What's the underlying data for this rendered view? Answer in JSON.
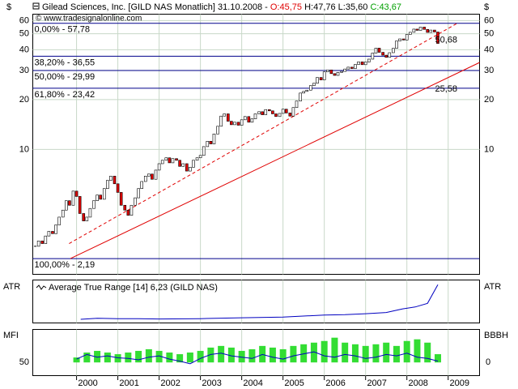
{
  "chart_data": [
    {
      "type": "candlestick",
      "title": "Gilead Sciences, Inc. [GILD NAS  Monatlich] 31.10.2008 -",
      "quote": [
        {
          "text": "O:45,75",
          "color": "#e00000"
        },
        {
          "text": "H:47,76",
          "color": "#000000"
        },
        {
          "text": "L:35,60",
          "color": "#000000"
        },
        {
          "text": "C:43,67",
          "color": "#00a000"
        }
      ],
      "source": "© www.tradesignalonline.com",
      "ylabel": "$",
      "log_scale": true,
      "ylim": [
        1.76,
        65.6
      ],
      "yticks": [
        10,
        20,
        30,
        40,
        50,
        60
      ],
      "xlim": [
        1998.94,
        2009.76
      ],
      "grid": true,
      "x": [
        1999.0,
        1999.08,
        1999.17,
        1999.25,
        1999.33,
        1999.42,
        1999.5,
        1999.58,
        1999.67,
        1999.75,
        1999.83,
        1999.92,
        2000.0,
        2000.08,
        2000.17,
        2000.25,
        2000.33,
        2000.42,
        2000.5,
        2000.58,
        2000.67,
        2000.75,
        2000.83,
        2000.92,
        2001.0,
        2001.08,
        2001.17,
        2001.25,
        2001.33,
        2001.42,
        2001.5,
        2001.58,
        2001.67,
        2001.75,
        2001.83,
        2001.92,
        2002.0,
        2002.08,
        2002.17,
        2002.25,
        2002.33,
        2002.42,
        2002.5,
        2002.58,
        2002.67,
        2002.75,
        2002.83,
        2002.92,
        2003.0,
        2003.08,
        2003.17,
        2003.25,
        2003.33,
        2003.42,
        2003.5,
        2003.58,
        2003.67,
        2003.75,
        2003.83,
        2003.92,
        2004.0,
        2004.08,
        2004.17,
        2004.25,
        2004.33,
        2004.42,
        2004.5,
        2004.58,
        2004.67,
        2004.75,
        2004.83,
        2004.92,
        2005.0,
        2005.08,
        2005.17,
        2005.25,
        2005.33,
        2005.42,
        2005.5,
        2005.58,
        2005.67,
        2005.75,
        2005.83,
        2005.92,
        2006.0,
        2006.08,
        2006.17,
        2006.25,
        2006.33,
        2006.42,
        2006.5,
        2006.58,
        2006.67,
        2006.75,
        2006.83,
        2006.92,
        2007.0,
        2007.08,
        2007.17,
        2007.25,
        2007.33,
        2007.42,
        2007.5,
        2007.58,
        2007.67,
        2007.75,
        2007.83,
        2007.92,
        2008.0,
        2008.08,
        2008.17,
        2008.25,
        2008.33,
        2008.42,
        2008.5,
        2008.58,
        2008.67,
        2008.75
      ],
      "values": [
        2.6,
        2.8,
        2.7,
        3.0,
        3.2,
        3.1,
        3.5,
        3.9,
        4.3,
        4.9,
        4.6,
        5.6,
        5.2,
        4.1,
        3.7,
        3.9,
        4.4,
        4.9,
        5.3,
        5.0,
        5.8,
        6.5,
        6.9,
        6.2,
        5.5,
        4.6,
        4.3,
        4.0,
        4.6,
        5.1,
        5.8,
        6.4,
        6.9,
        7.1,
        6.6,
        7.5,
        8.2,
        8.6,
        8.9,
        8.3,
        8.8,
        8.6,
        7.9,
        8.2,
        7.4,
        7.8,
        8.6,
        8.9,
        9.2,
        10.4,
        11.2,
        10.8,
        12.4,
        13.8,
        15.9,
        16.4,
        14.8,
        14.1,
        14.6,
        14.0,
        15.1,
        15.8,
        14.6,
        15.3,
        16.4,
        16.9,
        16.2,
        17.4,
        17.1,
        16.4,
        15.8,
        16.5,
        17.5,
        16.6,
        15.9,
        17.9,
        19.6,
        21.9,
        22.4,
        22.8,
        24.3,
        25.1,
        27.2,
        26.3,
        29.4,
        30.2,
        28.7,
        28.0,
        29.2,
        29.6,
        30.6,
        31.4,
        30.8,
        32.6,
        33.8,
        32.5,
        33.7,
        35.1,
        38.2,
        40.9,
        38.6,
        37.1,
        36.0,
        38.4,
        40.8,
        45.2,
        46.5,
        45.8,
        49.5,
        51.0,
        53.3,
        52.4,
        54.8,
        53.1,
        50.9,
        52.6,
        51.2,
        43.67
      ],
      "up_color": "#ffffff",
      "down_color": "#e00000",
      "edge_color": "#000000",
      "level_color": "#00008b",
      "levels": [
        {
          "value": 57.78,
          "label": "0,00% - 57,78"
        },
        {
          "value": 36.55,
          "label": "38,20% - 36,55"
        },
        {
          "value": 29.99,
          "label": "50,00% - 29,99"
        },
        {
          "value": 23.42,
          "label": "61,80% - 23,42"
        },
        {
          "value": 2.19,
          "label": "100,00% - 2,19"
        }
      ],
      "trend_lines": [
        {
          "x": [
            1999.82,
            2009.2
          ],
          "y": [
            2.7,
            57.4
          ],
          "dashed": true,
          "color": "#e00000",
          "end_label": {
            "value": 50.68,
            "label": "50,68"
          }
        },
        {
          "x": [
            1999.85,
            2009.76
          ],
          "y": [
            2.19,
            33.5
          ],
          "dashed": false,
          "color": "#e00000",
          "end_label": {
            "value": 25.58,
            "label": "25,58"
          }
        }
      ]
    },
    {
      "type": "line",
      "title": "Average True Range [14] 6,23 (GILD NAS)",
      "ylabel": "ATR",
      "xlim": [
        1998.94,
        2009.76
      ],
      "ylim": [
        0,
        7
      ],
      "x": [
        2000.1,
        2000.5,
        2001,
        2001.5,
        2002,
        2003,
        2004,
        2005,
        2006,
        2006.5,
        2007,
        2007.5,
        2007.9,
        2008.2,
        2008.5,
        2008.75
      ],
      "values": [
        0.6,
        0.75,
        0.7,
        0.7,
        0.65,
        0.7,
        0.85,
        0.95,
        1.3,
        1.35,
        1.5,
        1.7,
        2.3,
        2.6,
        3.2,
        6.23
      ],
      "color": "#0000c0"
    },
    {
      "type": "combo",
      "ylabel": "MFI",
      "y2label": "BBBH",
      "xlim": [
        1998.94,
        2009.76
      ],
      "xticks": [
        2000,
        2001,
        2002,
        2003,
        2004,
        2005,
        2006,
        2007,
        2008,
        2009
      ],
      "ylim": [
        30,
        100
      ],
      "yticks": [
        50
      ],
      "y2lim": [
        -0.4,
        1
      ],
      "y2ticks": [
        0
      ],
      "x": [
        2000,
        2000.25,
        2000.5,
        2000.75,
        2001,
        2001.25,
        2001.5,
        2001.75,
        2002,
        2002.25,
        2002.5,
        2002.75,
        2003,
        2003.25,
        2003.5,
        2003.75,
        2004,
        2004.25,
        2004.5,
        2004.75,
        2005,
        2005.25,
        2005.5,
        2005.75,
        2006,
        2006.25,
        2006.5,
        2006.75,
        2007,
        2007.25,
        2007.5,
        2007.75,
        2008,
        2008.25,
        2008.5,
        2008.75
      ],
      "series": [
        {
          "name": "BBBH",
          "type": "bar",
          "axis": "y2",
          "color": "#33dd33",
          "values": [
            0.15,
            0.3,
            0.35,
            0.3,
            0.25,
            0.3,
            0.35,
            0.4,
            0.35,
            0.3,
            0.25,
            0.3,
            0.35,
            0.45,
            0.5,
            0.45,
            0.35,
            0.4,
            0.5,
            0.45,
            0.4,
            0.5,
            0.55,
            0.6,
            0.65,
            0.75,
            0.6,
            0.55,
            0.5,
            0.55,
            0.6,
            0.5,
            0.65,
            0.7,
            0.6,
            0.25
          ]
        },
        {
          "name": "MFI",
          "type": "line",
          "color": "#0000c0",
          "values": [
            55,
            62,
            58,
            60,
            57,
            56,
            54,
            58,
            60,
            55,
            52,
            48,
            56,
            62,
            64,
            60,
            58,
            56,
            62,
            58,
            55,
            60,
            63,
            66,
            60,
            58,
            62,
            60,
            56,
            58,
            62,
            60,
            64,
            58,
            56,
            52
          ]
        }
      ]
    }
  ]
}
